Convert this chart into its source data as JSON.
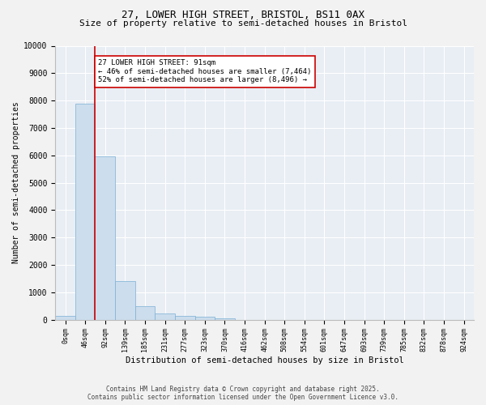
{
  "title_line1": "27, LOWER HIGH STREET, BRISTOL, BS11 0AX",
  "title_line2": "Size of property relative to semi-detached houses in Bristol",
  "xlabel": "Distribution of semi-detached houses by size in Bristol",
  "ylabel": "Number of semi-detached properties",
  "categories": [
    "0sqm",
    "46sqm",
    "92sqm",
    "139sqm",
    "185sqm",
    "231sqm",
    "277sqm",
    "323sqm",
    "370sqm",
    "416sqm",
    "462sqm",
    "508sqm",
    "554sqm",
    "601sqm",
    "647sqm",
    "693sqm",
    "739sqm",
    "785sqm",
    "832sqm",
    "878sqm",
    "924sqm"
  ],
  "values": [
    150,
    7900,
    5950,
    1420,
    480,
    230,
    130,
    100,
    50,
    0,
    0,
    0,
    0,
    0,
    0,
    0,
    0,
    0,
    0,
    0,
    0
  ],
  "bar_color": "#ccdded",
  "bar_edge_color": "#7bafd4",
  "line_color": "#cc0000",
  "annotation_title": "27 LOWER HIGH STREET: 91sqm",
  "annotation_line1": "← 46% of semi-detached houses are smaller (7,464)",
  "annotation_line2": "52% of semi-detached houses are larger (8,496) →",
  "annotation_box_facecolor": "#ffffff",
  "annotation_box_edgecolor": "#cc0000",
  "ylim": [
    0,
    10000
  ],
  "yticks": [
    0,
    1000,
    2000,
    3000,
    4000,
    5000,
    6000,
    7000,
    8000,
    9000,
    10000
  ],
  "footer_line1": "Contains HM Land Registry data © Crown copyright and database right 2025.",
  "footer_line2": "Contains public sector information licensed under the Open Government Licence v3.0.",
  "bg_color": "#f2f2f2",
  "plot_bg_color": "#e8eef4",
  "grid_color": "#ffffff",
  "title1_fontsize": 9,
  "title2_fontsize": 8
}
